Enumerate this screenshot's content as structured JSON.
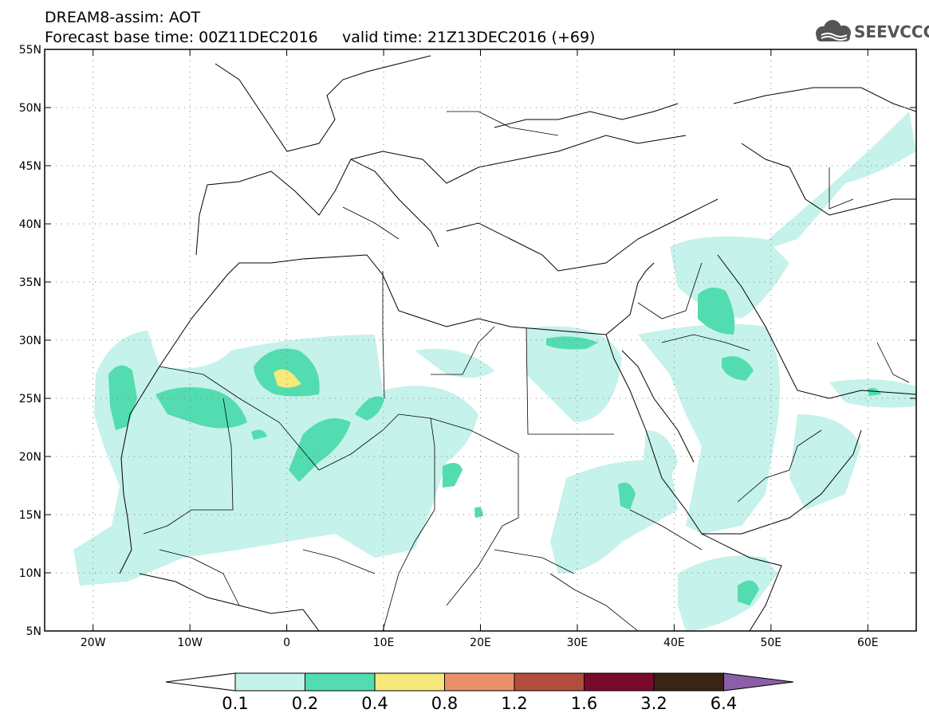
{
  "title": {
    "line1": "DREAM8-assim: AOT",
    "line2": "Forecast base time: 00Z11DEC2016     valid time: 21Z13DEC2016 (+69)"
  },
  "logo": {
    "text": "SEEVCCC",
    "icon": "cloud-logo-icon",
    "color": "#555555"
  },
  "map": {
    "lon_range": [
      -25,
      65
    ],
    "lat_range": [
      5,
      55
    ],
    "lon_ticks": [
      {
        "value": -20,
        "label": "20W"
      },
      {
        "value": -10,
        "label": "10W"
      },
      {
        "value": 0,
        "label": "0"
      },
      {
        "value": 10,
        "label": "10E"
      },
      {
        "value": 20,
        "label": "20E"
      },
      {
        "value": 30,
        "label": "30E"
      },
      {
        "value": 40,
        "label": "40E"
      },
      {
        "value": 50,
        "label": "50E"
      },
      {
        "value": 60,
        "label": "60E"
      }
    ],
    "lat_ticks": [
      {
        "value": 55,
        "label": "55N"
      },
      {
        "value": 50,
        "label": "50N"
      },
      {
        "value": 45,
        "label": "45N"
      },
      {
        "value": 40,
        "label": "40N"
      },
      {
        "value": 35,
        "label": "35N"
      },
      {
        "value": 30,
        "label": "30N"
      },
      {
        "value": 25,
        "label": "25N"
      },
      {
        "value": 20,
        "label": "20N"
      },
      {
        "value": 15,
        "label": "15N"
      },
      {
        "value": 10,
        "label": "10N"
      },
      {
        "value": 5,
        "label": "5N"
      }
    ],
    "grid": true,
    "variable": "AOT"
  },
  "colorbar": {
    "levels": [
      "0.1",
      "0.2",
      "0.4",
      "0.8",
      "1.2",
      "1.6",
      "3.2",
      "6.4"
    ],
    "colors": [
      "#ffffff",
      "#c5f2ea",
      "#52dcb0",
      "#f6e87a",
      "#e8906a",
      "#b24d3e",
      "#7a0a2c",
      "#3a2414",
      "#8a5fa8"
    ]
  }
}
